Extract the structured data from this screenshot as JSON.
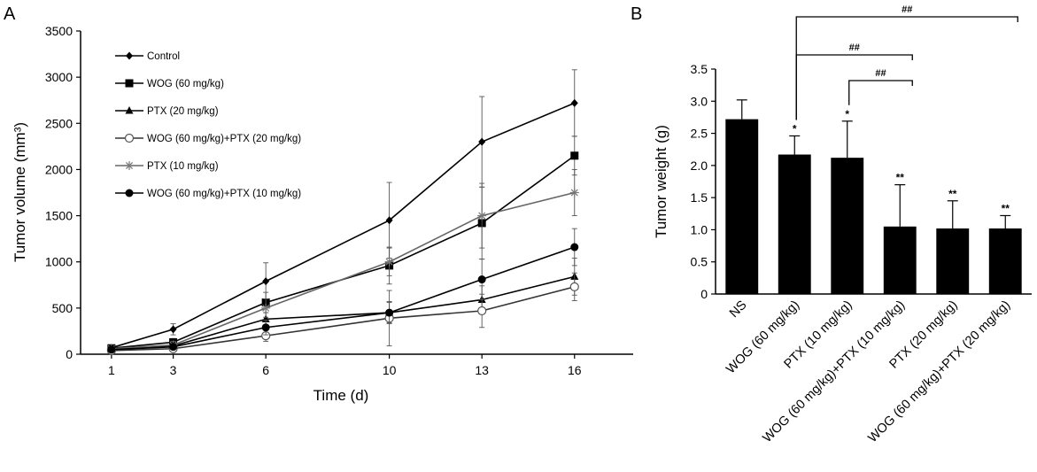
{
  "chart_data": [
    {
      "panel": "A",
      "type": "line",
      "xlabel": "Time (d)",
      "ylabel": "Tumor volume (mm³)",
      "x": [
        1,
        3,
        6,
        10,
        13,
        16
      ],
      "xlim": [
        0,
        17.9
      ],
      "ylim": [
        0,
        3500
      ],
      "yticks": [
        0,
        500,
        1000,
        1500,
        2000,
        2500,
        3000,
        3500
      ],
      "grid": false,
      "legend_position": "top-left",
      "series": [
        {
          "name": "Control",
          "marker": "diamond",
          "values": [
            70,
            270,
            790,
            1450,
            2300,
            2720
          ],
          "errors": [
            20,
            60,
            200,
            410,
            490,
            360
          ]
        },
        {
          "name": "WOG (60 mg/kg)",
          "marker": "square",
          "values": [
            65,
            130,
            560,
            960,
            1420,
            2150
          ],
          "errors": [
            15,
            40,
            110,
            200,
            390,
            210
          ]
        },
        {
          "name": "PTX (20 mg/kg)",
          "marker": "triangle",
          "values": [
            50,
            90,
            380,
            450,
            590,
            840
          ],
          "errors": [
            10,
            30,
            70,
            110,
            150,
            200
          ]
        },
        {
          "name": "WOG (60 mg/kg)+PTX (20 mg/kg)",
          "marker": "open-circle",
          "values": [
            40,
            60,
            200,
            390,
            470,
            730
          ],
          "errors": [
            10,
            20,
            60,
            300,
            180,
            150
          ]
        },
        {
          "name": "PTX (10 mg/kg)",
          "marker": "star",
          "values": [
            60,
            100,
            500,
            1000,
            1500,
            1750
          ],
          "errors": [
            15,
            40,
            100,
            150,
            350,
            250
          ]
        },
        {
          "name": "WOG (60 mg/kg)+PTX (10 mg/kg)",
          "marker": "filled-circle",
          "values": [
            50,
            80,
            290,
            450,
            810,
            1160
          ],
          "errors": [
            10,
            25,
            80,
            120,
            220,
            200
          ]
        }
      ]
    },
    {
      "panel": "B",
      "type": "bar",
      "ylabel": "Tumor weight (g)",
      "ylim": [
        0,
        3.5
      ],
      "yticks": [
        "0",
        "0.5",
        "1.0",
        "1.5",
        "2.0",
        "2.5",
        "3.0",
        "3.5"
      ],
      "categories": [
        "NS",
        "WOG (60 mg/kg)",
        "PTX (10 mg/kg)",
        "WOG (60 mg/kg)+PTX (10 mg/kg)",
        "PTX (20 mg/kg)",
        "WOG (60 mg/kg)+PTX (20 mg/kg)"
      ],
      "values": [
        2.72,
        2.17,
        2.12,
        1.05,
        1.02,
        1.02
      ],
      "errors": [
        0.3,
        0.29,
        0.57,
        0.65,
        0.43,
        0.2
      ],
      "significance": [
        "",
        "*",
        "*",
        "**",
        "**",
        "**"
      ],
      "comparisons": [
        {
          "from": 2,
          "to": 3,
          "label": "##"
        },
        {
          "from": 1,
          "to": 3,
          "label": "##"
        },
        {
          "from": 1,
          "to": 5,
          "label": "##"
        }
      ],
      "bar_color": "#000000"
    }
  ]
}
